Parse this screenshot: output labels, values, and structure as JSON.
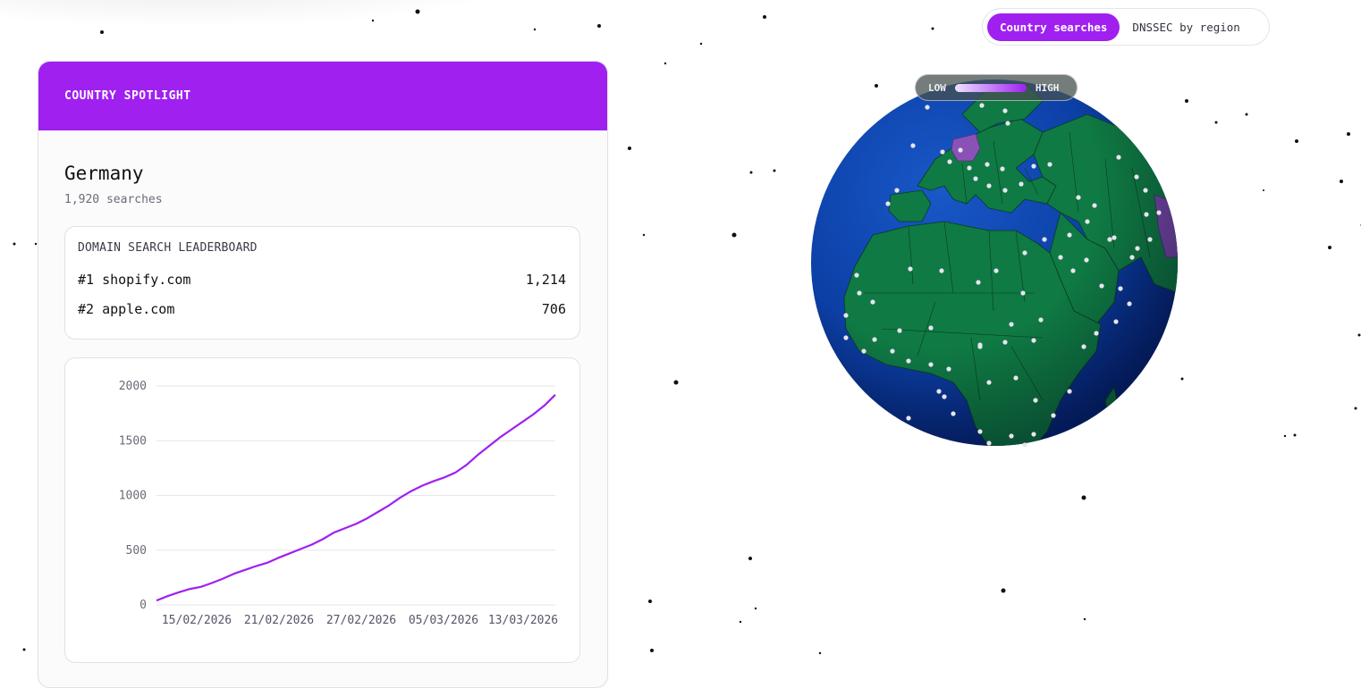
{
  "spotlight": {
    "header": "COUNTRY SPOTLIGHT",
    "country": "Germany",
    "searches": "1,920 searches",
    "leaderboard": {
      "title": "DOMAIN SEARCH LEADERBOARD",
      "rows": [
        {
          "rank_domain": "#1 shopify.com",
          "count": "1,214"
        },
        {
          "rank_domain": "#2 apple.com",
          "count": "706"
        }
      ]
    }
  },
  "toggle": {
    "active_label": "Country searches",
    "inactive_label": "DNSSEC by region"
  },
  "legend": {
    "low": "LOW",
    "high": "HIGH"
  },
  "colors": {
    "accent": "#a020f0",
    "ocean": "#0a3fa8",
    "land": "#0f7a44",
    "highlight": "#8a4fb8"
  },
  "chart_data": {
    "type": "line",
    "x_tick_labels": [
      "15/02/2026",
      "21/02/2026",
      "27/02/2026",
      "05/03/2026",
      "13/03/2026"
    ],
    "y_ticks": [
      0,
      500,
      1000,
      1500,
      2000
    ],
    "ylim": [
      0,
      2000
    ],
    "grid": true,
    "series": [
      {
        "color": "#a020f0",
        "values": [
          40,
          80,
          115,
          145,
          165,
          200,
          240,
          285,
          320,
          355,
          385,
          430,
          470,
          510,
          550,
          600,
          660,
          700,
          740,
          790,
          850,
          910,
          980,
          1040,
          1090,
          1130,
          1165,
          1210,
          1280,
          1370,
          1450,
          1530,
          1600,
          1670,
          1740,
          1820,
          1920
        ]
      }
    ]
  }
}
